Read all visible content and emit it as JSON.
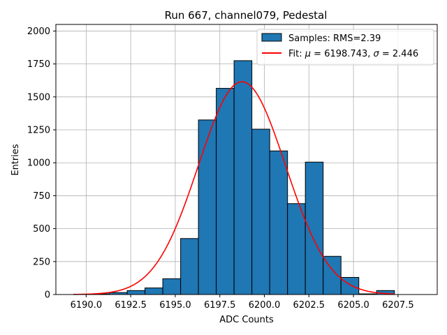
{
  "chart_data": {
    "type": "bar",
    "title": "Run 667, channel079, Pedestal",
    "xlabel": "ADC Counts",
    "ylabel": "Entries",
    "xlim": [
      6188.3,
      6209.7
    ],
    "ylim": [
      0,
      2050
    ],
    "xticks": [
      6190.0,
      6192.5,
      6195.0,
      6197.5,
      6200.0,
      6202.5,
      6205.0,
      6207.5
    ],
    "xtick_labels": [
      "6190.0",
      "6192.5",
      "6195.0",
      "6197.5",
      "6200.0",
      "6202.5",
      "6205.0",
      "6207.5"
    ],
    "yticks": [
      0,
      250,
      500,
      750,
      1000,
      1250,
      1500,
      1750,
      2000
    ],
    "ytick_labels": [
      "0",
      "250",
      "500",
      "750",
      "1000",
      "1250",
      "1500",
      "1750",
      "2000"
    ],
    "grid": true,
    "legend_position": "top-right",
    "histogram": {
      "name": "Samples: RMS=2.39",
      "color": "#1f77b4",
      "edge_color": "#000000",
      "bin_edges": [
        6189.3,
        6190.3,
        6191.3,
        6192.3,
        6193.3,
        6194.3,
        6195.3,
        6196.3,
        6197.3,
        6198.3,
        6199.3,
        6200.3,
        6201.3,
        6202.3,
        6203.3,
        6204.3,
        6205.3,
        6206.3,
        6207.3
      ],
      "counts": [
        2,
        5,
        15,
        30,
        50,
        120,
        425,
        1325,
        1565,
        1775,
        1255,
        1090,
        690,
        1005,
        290,
        130,
        5,
        30
      ]
    },
    "fit": {
      "name": "Fit: μ = 6198.743, σ = 2.446",
      "legend_parts": [
        "Fit: ",
        "μ",
        " = 6198.743, ",
        "σ",
        " = 2.446"
      ],
      "color": "#ff0000",
      "mu": 6198.743,
      "sigma": 2.446,
      "amplitude": 1615,
      "x_range": [
        6189.3,
        6207.3
      ]
    }
  }
}
